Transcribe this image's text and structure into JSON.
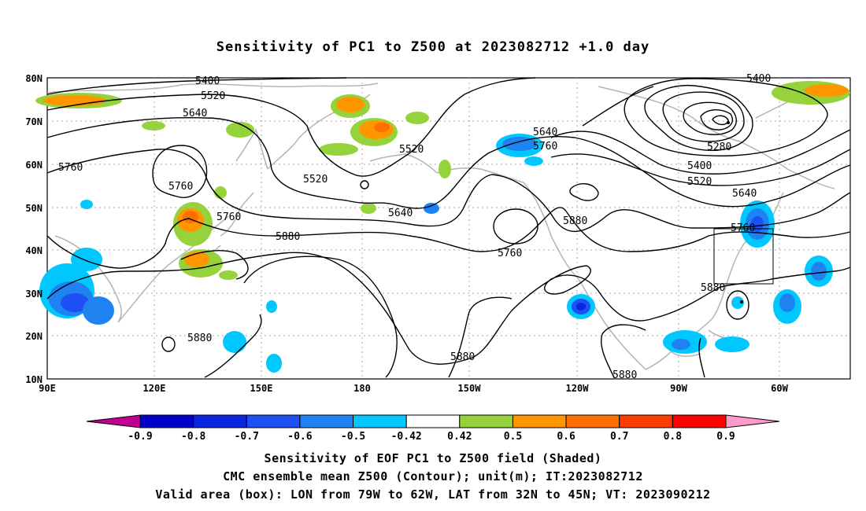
{
  "title": "Sensitivity of PC1 to Z500 at 2023082712 +1.0 day",
  "lat_labels": [
    "80N",
    "70N",
    "60N",
    "50N",
    "40N",
    "30N",
    "20N",
    "10N"
  ],
  "lon_labels": [
    "90E",
    "120E",
    "150E",
    "180",
    "150W",
    "120W",
    "90W",
    "60W"
  ],
  "contour_labels": [
    "5400",
    "5520",
    "5640",
    "5760",
    "5880",
    "5280",
    "5400",
    "5520",
    "5640",
    "5760",
    "5880",
    "5640",
    "5760",
    "5520",
    "5520",
    "5640",
    "5760",
    "5760",
    "5880",
    "5880",
    "5880",
    "5880",
    "5760",
    "5400"
  ],
  "colorbar": {
    "labels": [
      "-0.9",
      "-0.8",
      "-0.7",
      "-0.6",
      "-0.5",
      "-0.42",
      "0.42",
      "0.5",
      "0.6",
      "0.7",
      "0.8",
      "0.9"
    ],
    "colors": [
      "#c2008f",
      "#0000c8",
      "#0a26e0",
      "#1e50f5",
      "#1e82f0",
      "#00c8ff",
      "#ffffff",
      "#96d23c",
      "#ff9600",
      "#ff6e00",
      "#ff3c00",
      "#ff0000",
      "#ff9bc8"
    ]
  },
  "captions": [
    "Sensitivity of EOF PC1 to Z500 field (Shaded)",
    "CMC ensemble mean Z500 (Contour); unit(m); IT:2023082712",
    "Valid area (box): LON from 79W to 62W, LAT from 32N to 45N; VT: 2023090212"
  ],
  "valid_box": {
    "lon_min_w": 79,
    "lon_max_w": 62,
    "lat_min_n": 32,
    "lat_max_n": 45
  }
}
